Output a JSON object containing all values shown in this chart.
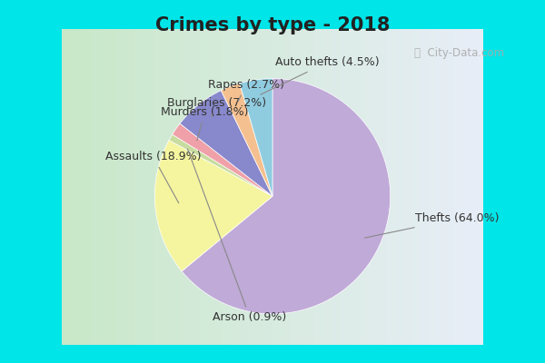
{
  "title": "Crimes by type - 2018",
  "title_fontsize": 15,
  "title_fontweight": "bold",
  "labels": [
    "Thefts",
    "Assaults",
    "Arson",
    "Murders",
    "Burglaries",
    "Rapes",
    "Auto thefts"
  ],
  "label_display": [
    "Thefts (64.0%)",
    "Assaults (18.9%)",
    "Arson (0.9%)",
    "Murders (1.8%)",
    "Burglaries (7.2%)",
    "Rapes (2.7%)",
    "Auto thefts (4.5%)"
  ],
  "values": [
    64.0,
    18.9,
    0.9,
    1.8,
    7.2,
    2.7,
    4.5
  ],
  "colors": [
    "#c0aad8",
    "#f5f5a0",
    "#c8dca0",
    "#f0a0a8",
    "#8888cc",
    "#f5c090",
    "#90cce0"
  ],
  "bg_cyan": "#00e5e8",
  "bg_chart_left": "#c8e8c8",
  "bg_chart_right": "#e8eef8",
  "startangle": 90,
  "label_fontsize": 9,
  "watermark": "City-Data.com"
}
